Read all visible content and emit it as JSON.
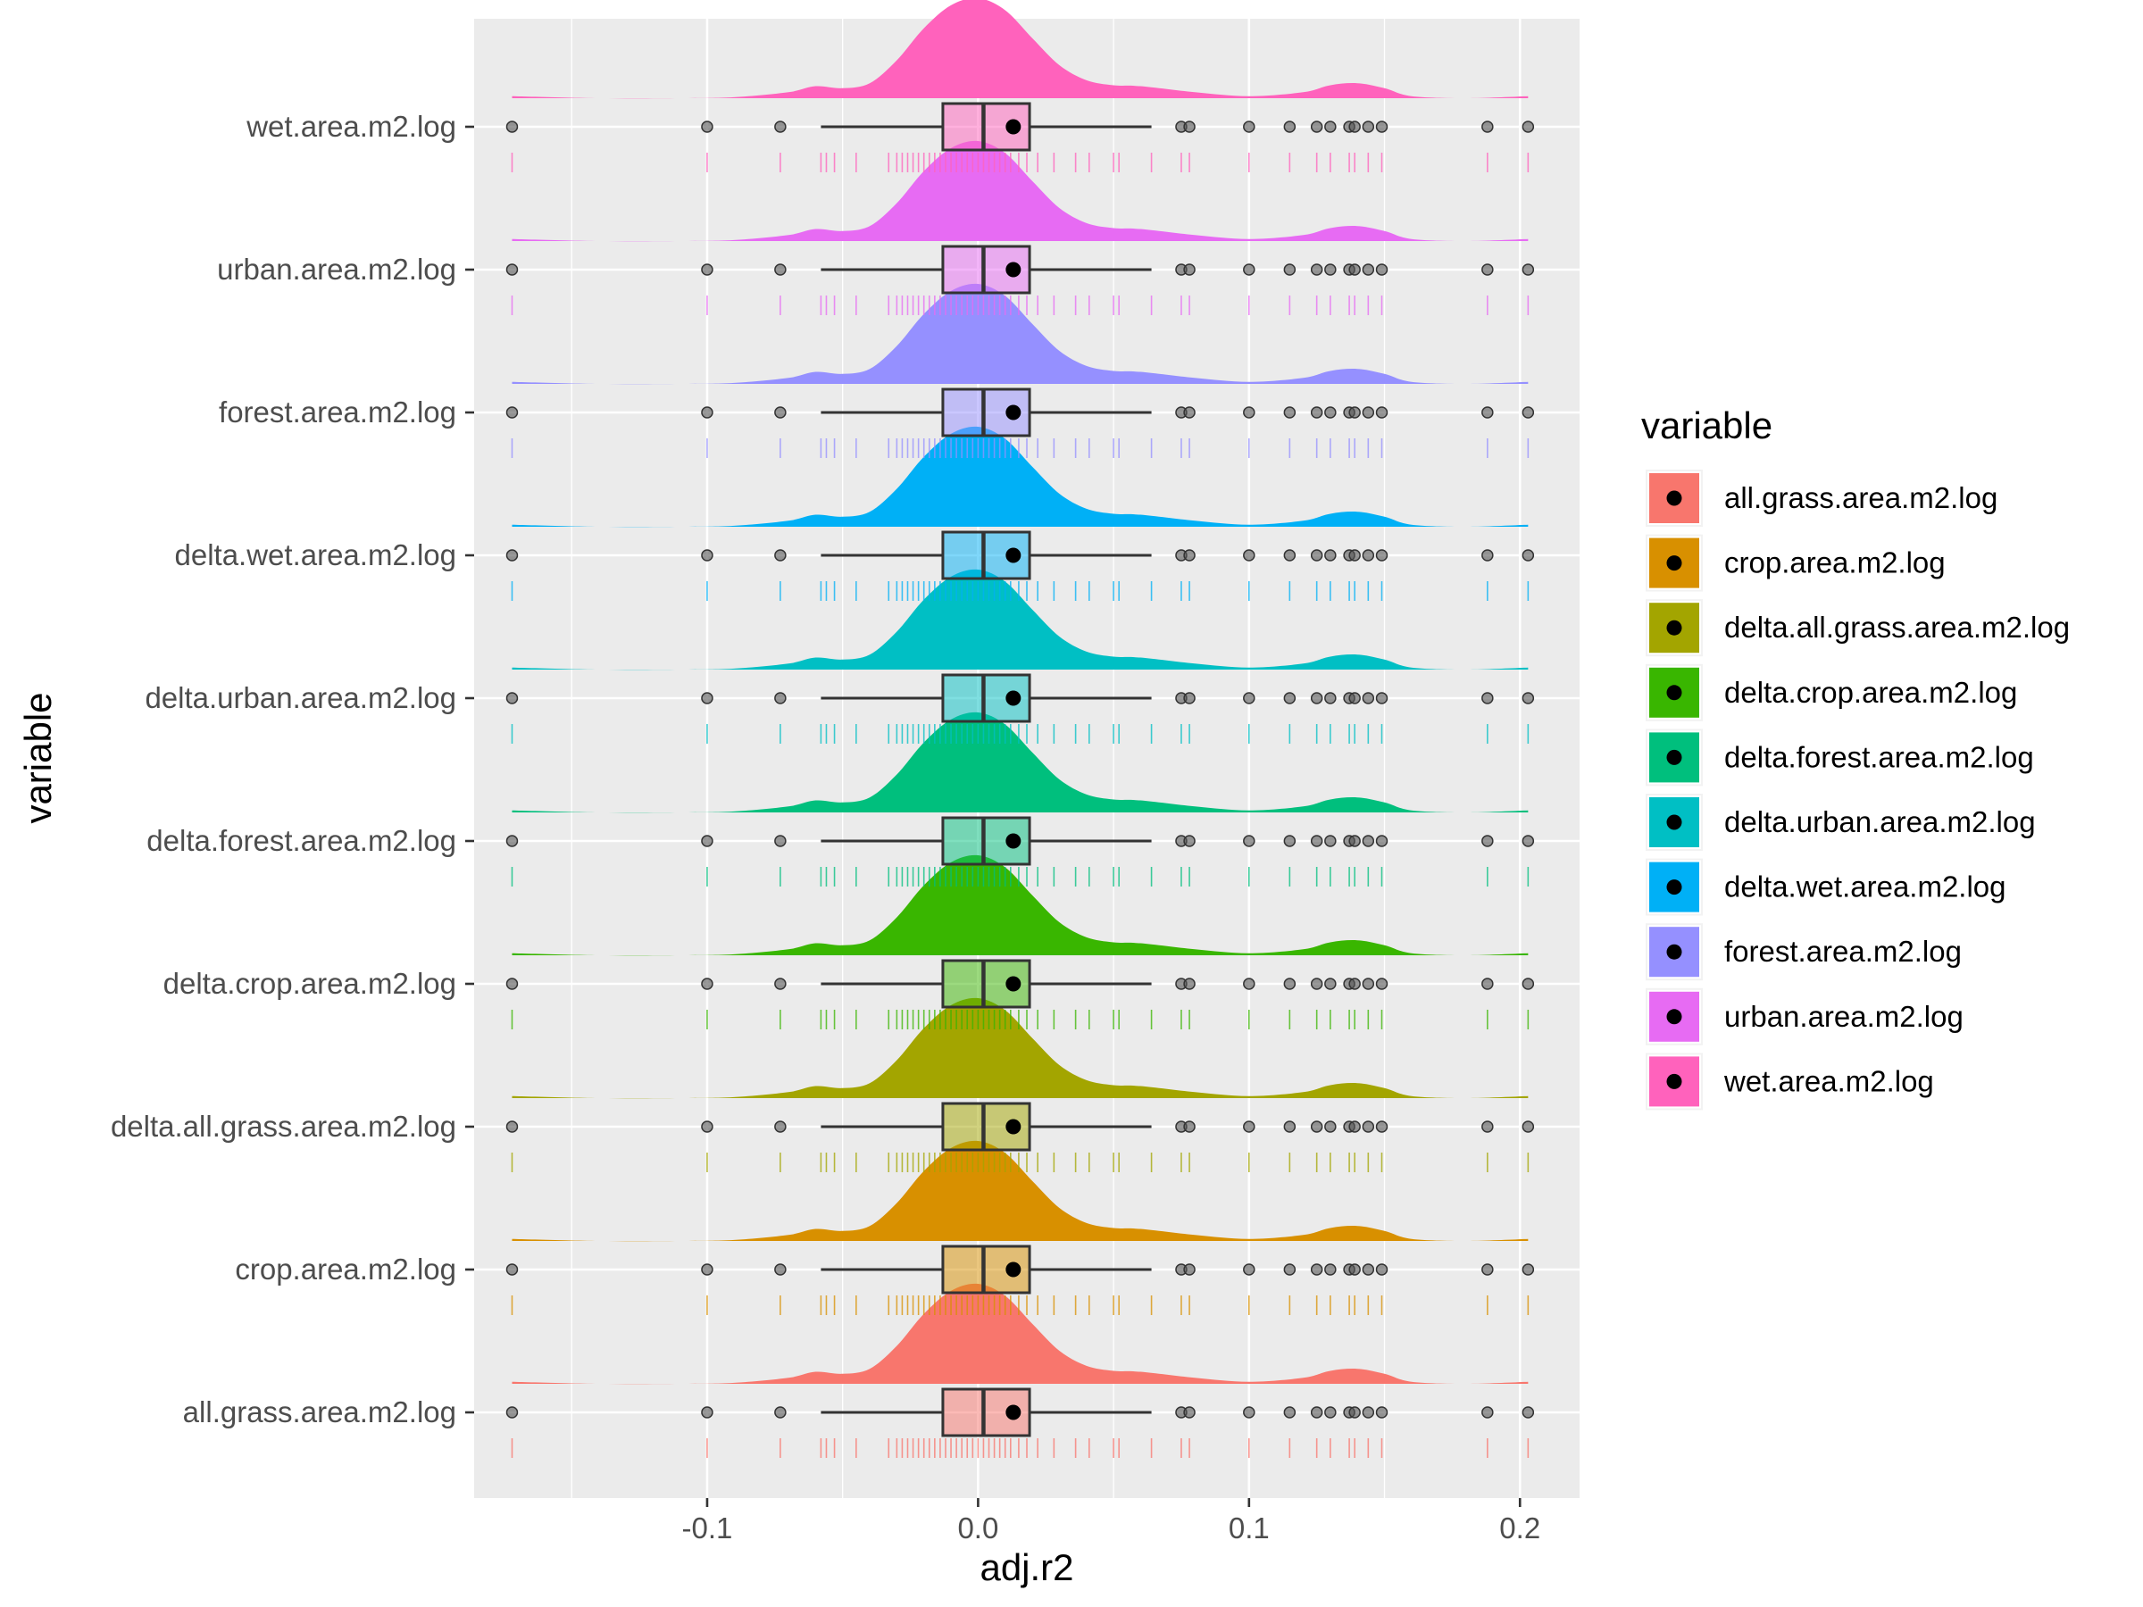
{
  "chart_data": {
    "type": "raincloud",
    "xlabel": "adj.r2",
    "ylabel": "variable",
    "xlim": [
      -0.186,
      0.222
    ],
    "xticks": [
      -0.1,
      0.0,
      0.1,
      0.2
    ],
    "xtick_labels": [
      "-0.1",
      "0.0",
      "0.1",
      "0.2"
    ],
    "xminor": [
      -0.15,
      -0.05,
      0.05,
      0.15
    ],
    "grid": true,
    "legend": {
      "title": "variable",
      "position": "right",
      "items": [
        "all.grass.area.m2.log",
        "crop.area.m2.log",
        "delta.all.grass.area.m2.log",
        "delta.crop.area.m2.log",
        "delta.forest.area.m2.log",
        "delta.urban.area.m2.log",
        "delta.wet.area.m2.log",
        "forest.area.m2.log",
        "urban.area.m2.log",
        "wet.area.m2.log"
      ]
    },
    "categories": [
      "all.grass.area.m2.log",
      "crop.area.m2.log",
      "delta.all.grass.area.m2.log",
      "delta.crop.area.m2.log",
      "delta.forest.area.m2.log",
      "delta.urban.area.m2.log",
      "delta.wet.area.m2.log",
      "forest.area.m2.log",
      "urban.area.m2.log",
      "wet.area.m2.log"
    ],
    "colors": [
      "#F8766D",
      "#D89000",
      "#A3A500",
      "#39B600",
      "#00BF7D",
      "#00BFC4",
      "#00B0F6",
      "#9590FF",
      "#E76BF3",
      "#FF62BC"
    ],
    "box": {
      "whisker_low": -0.058,
      "q1": -0.013,
      "median": 0.002,
      "q3": 0.019,
      "whisker_high": 0.064,
      "mean": 0.013
    },
    "outliers": [
      -0.172,
      -0.1,
      -0.073,
      0.075,
      0.078,
      0.1,
      0.115,
      0.125,
      0.13,
      0.137,
      0.139,
      0.144,
      0.149,
      0.188,
      0.203
    ],
    "rug_values": [
      -0.172,
      -0.1,
      -0.073,
      -0.058,
      -0.056,
      -0.053,
      -0.045,
      -0.033,
      -0.03,
      -0.028,
      -0.026,
      -0.024,
      -0.022,
      -0.02,
      -0.018,
      -0.016,
      -0.014,
      -0.012,
      -0.01,
      -0.008,
      -0.006,
      -0.004,
      -0.002,
      0.0,
      0.002,
      0.004,
      0.006,
      0.008,
      0.01,
      0.012,
      0.015,
      0.018,
      0.022,
      0.028,
      0.036,
      0.041,
      0.05,
      0.052,
      0.064,
      0.075,
      0.078,
      0.1,
      0.115,
      0.125,
      0.13,
      0.137,
      0.139,
      0.144,
      0.149,
      0.188,
      0.203
    ],
    "density": {
      "x": [
        -0.172,
        -0.14,
        -0.11,
        -0.09,
        -0.07,
        -0.06,
        -0.05,
        -0.04,
        -0.03,
        -0.02,
        -0.01,
        0.0,
        0.01,
        0.02,
        0.03,
        0.04,
        0.05,
        0.06,
        0.08,
        0.1,
        0.12,
        0.13,
        0.14,
        0.15,
        0.16,
        0.18,
        0.203
      ],
      "y": [
        0.02,
        0.0,
        0.0,
        0.01,
        0.06,
        0.12,
        0.1,
        0.15,
        0.38,
        0.7,
        0.93,
        1.0,
        0.88,
        0.6,
        0.33,
        0.18,
        0.13,
        0.12,
        0.06,
        0.02,
        0.06,
        0.13,
        0.15,
        0.1,
        0.02,
        0.0,
        0.02
      ]
    }
  }
}
